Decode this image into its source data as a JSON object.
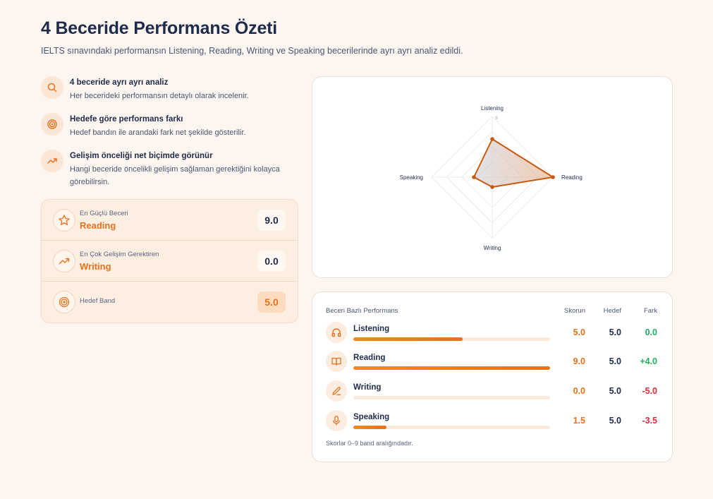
{
  "header": {
    "title": "4 Beceride Performans Özeti",
    "subtitle": "IELTS sınavındaki performansın Listening, Reading, Writing ve Speaking becerilerinde ayrı ayrı analiz edildi."
  },
  "features": [
    {
      "icon": "search-icon",
      "title": "4 beceride ayrı ayrı analiz",
      "desc": "Her becerideki performansın detaylı olarak incelenir."
    },
    {
      "icon": "target-icon",
      "title": "Hedefe göre performans farkı",
      "desc": "Hedef bandın ile arandaki fark net şekilde gösterilir."
    },
    {
      "icon": "trend-up-icon",
      "title": "Gelişim önceliği net biçimde görünür",
      "desc": "Hangi beceride öncelikli gelişim sağlaman gerektiğini kolayca görebilirsin."
    }
  ],
  "highlights": {
    "strongest": {
      "label": "En Güçlü Beceri",
      "value": "Reading",
      "score": "9.0"
    },
    "weakest": {
      "label": "En Çok Gelişim Gerektiren",
      "value": "Writing",
      "score": "0.0"
    },
    "target": {
      "label": "Hedef Band",
      "score": "5.0"
    }
  },
  "radar": {
    "axes": [
      "Listening",
      "Reading",
      "Writing",
      "Speaking"
    ],
    "max_tick": "9",
    "max": 9,
    "values": [
      5.0,
      9.0,
      0.0,
      1.5
    ],
    "color": "#c75a12"
  },
  "table": {
    "title": "Beceri Bazlı Performans",
    "col_score": "Skorun",
    "col_target": "Hedef",
    "col_diff": "Fark",
    "rows": [
      {
        "icon": "headphones-icon",
        "name": "Listening",
        "score": "5.0",
        "target": "5.0",
        "diff": "0.0",
        "fraction": 0.556
      },
      {
        "icon": "book-icon",
        "name": "Reading",
        "score": "9.0",
        "target": "5.0",
        "diff": "+4.0",
        "fraction": 1.0
      },
      {
        "icon": "pen-icon",
        "name": "Writing",
        "score": "0.0",
        "target": "5.0",
        "diff": "-5.0",
        "fraction": 0.0
      },
      {
        "icon": "microphone-icon",
        "name": "Speaking",
        "score": "1.5",
        "target": "5.0",
        "diff": "-3.5",
        "fraction": 0.167
      }
    ],
    "footnote": "Skorlar 0–9 band aralığındadır."
  },
  "colors": {
    "accent": "#e8711a",
    "positive": "#1fae5d",
    "negative": "#e0293a",
    "title": "#1e2b4a"
  }
}
